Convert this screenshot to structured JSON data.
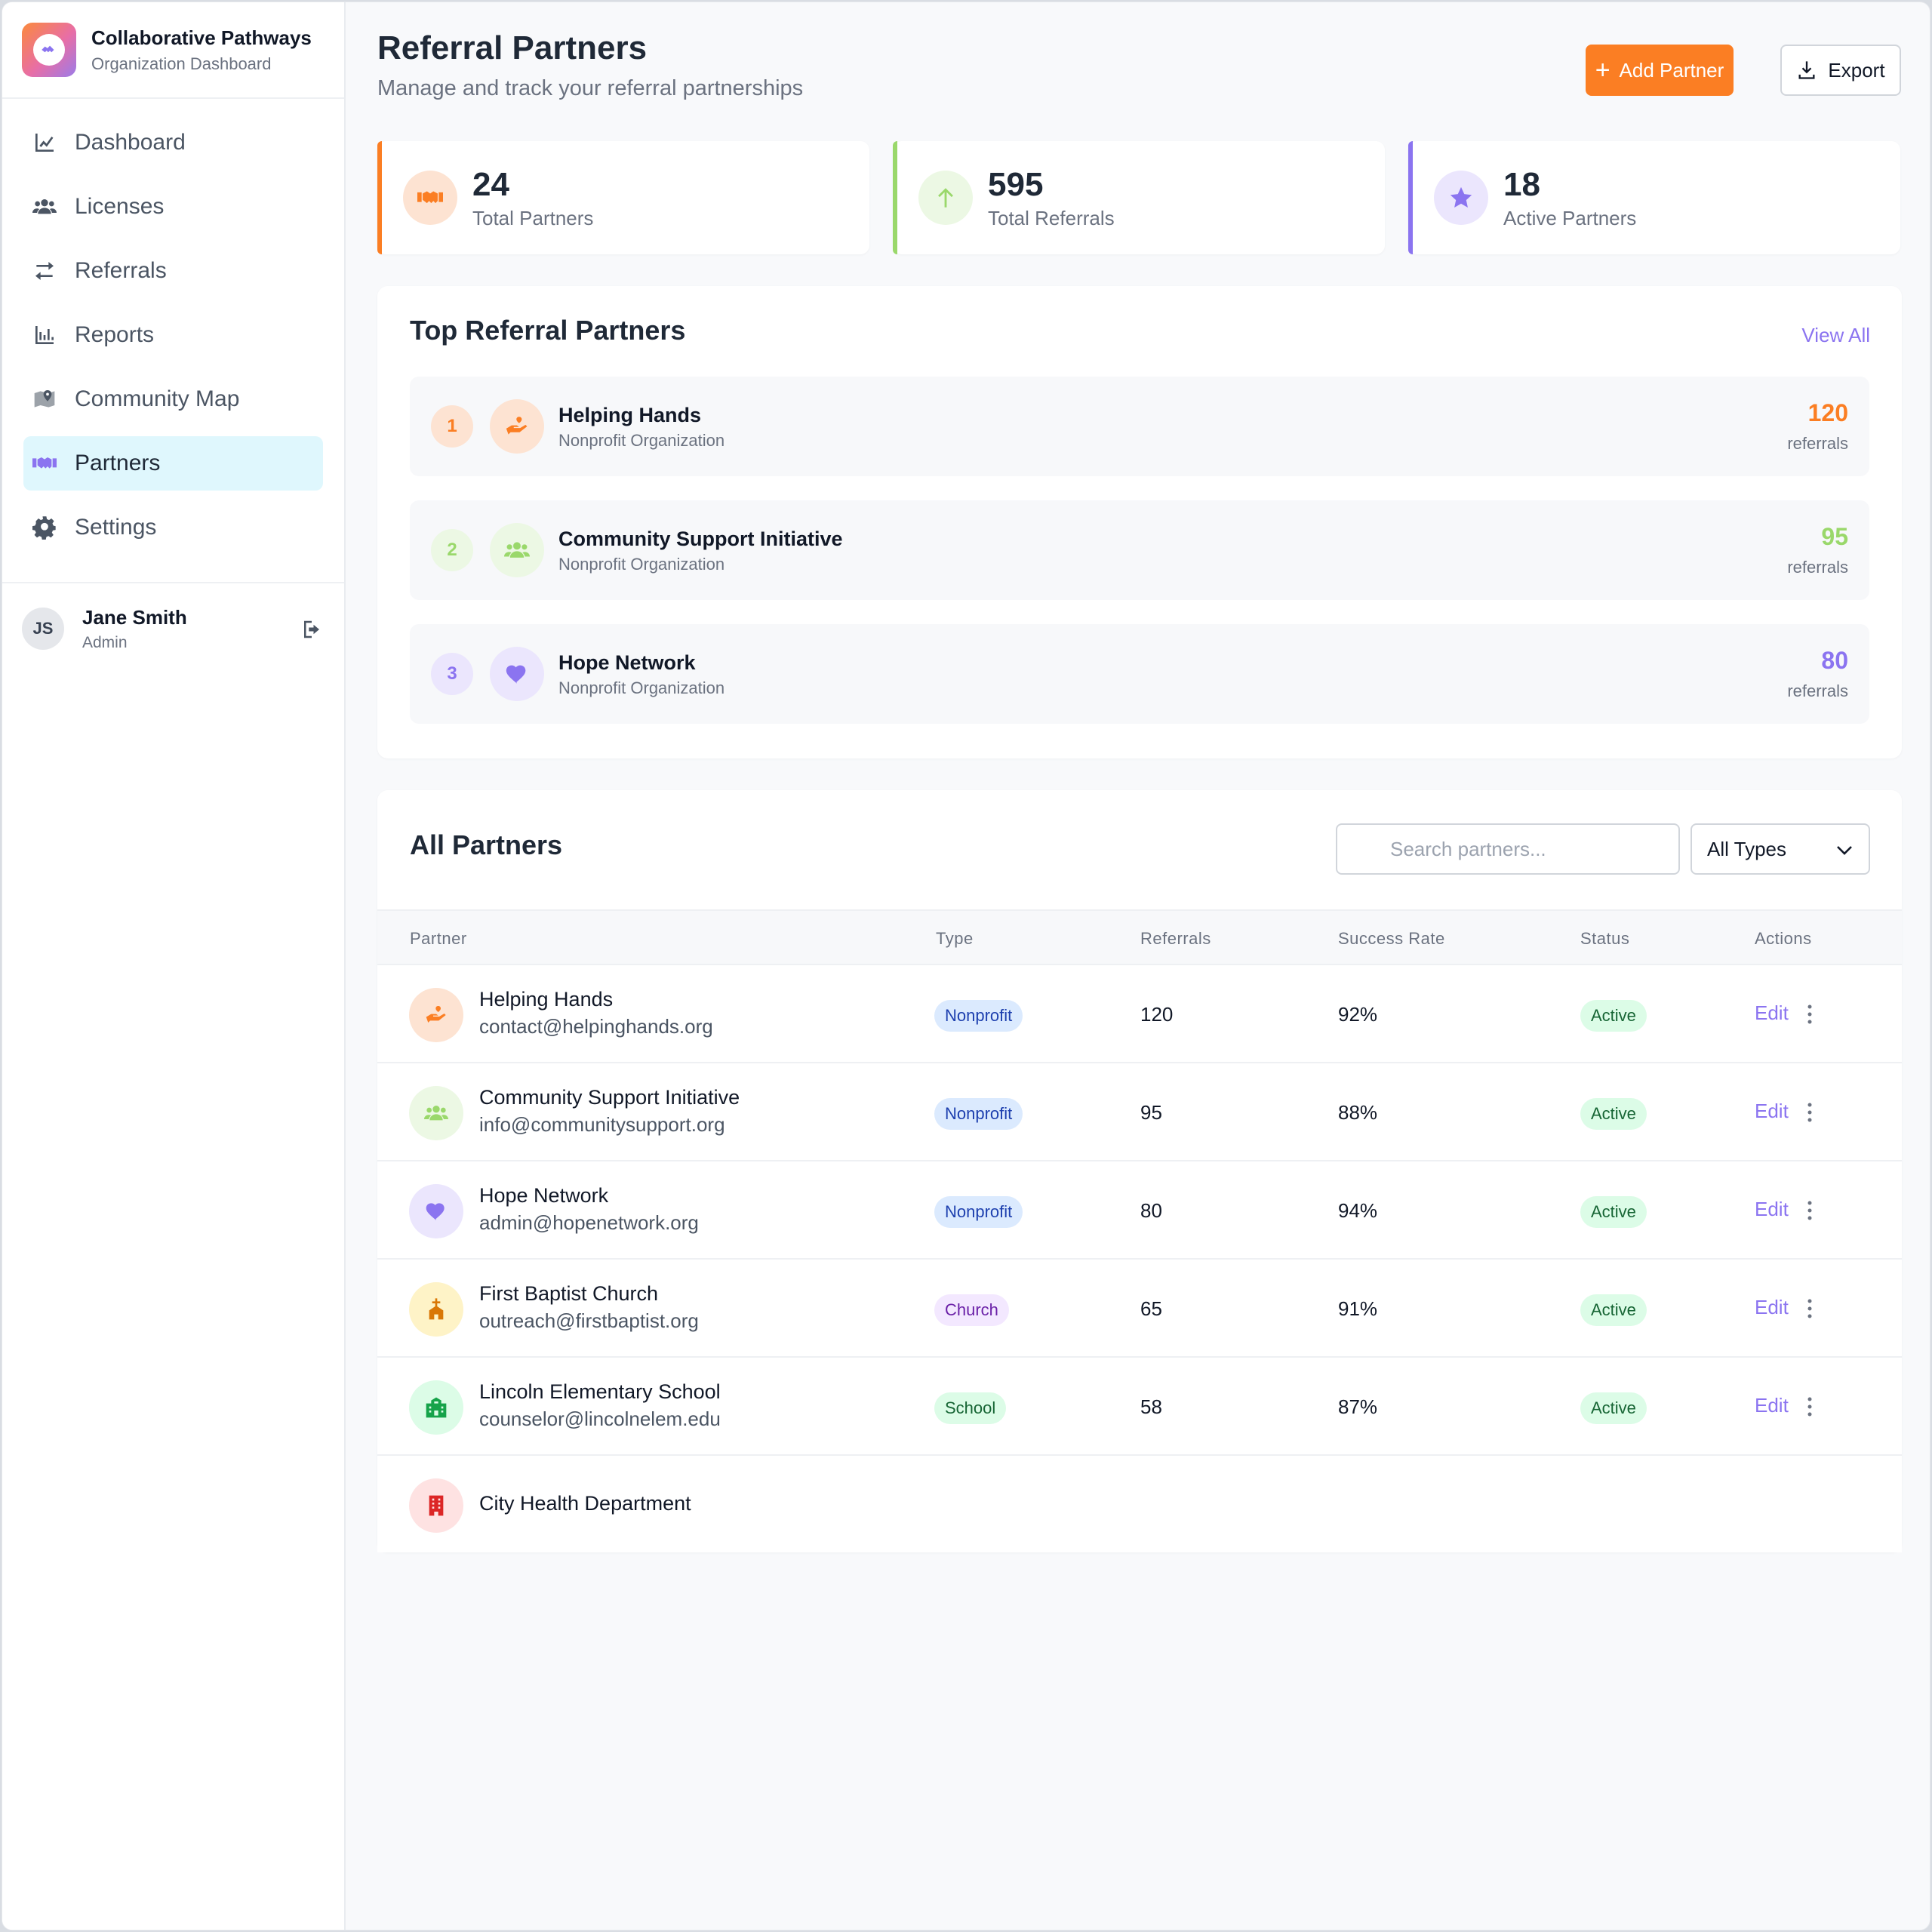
{
  "brand": {
    "title": "Collaborative Pathways",
    "subtitle": "Organization Dashboard"
  },
  "nav": [
    {
      "label": "Dashboard",
      "icon": "chart-line-icon",
      "active": false
    },
    {
      "label": "Licenses",
      "icon": "users-icon",
      "active": false
    },
    {
      "label": "Referrals",
      "icon": "exchange-arrows-icon",
      "active": false
    },
    {
      "label": "Reports",
      "icon": "bar-chart-icon",
      "active": false
    },
    {
      "label": "Community Map",
      "icon": "map-marker-icon",
      "active": false
    },
    {
      "label": "Partners",
      "icon": "handshake-icon",
      "active": true
    },
    {
      "label": "Settings",
      "icon": "gear-icon",
      "active": false
    }
  ],
  "user": {
    "initials": "JS",
    "name": "Jane Smith",
    "role": "Admin"
  },
  "header": {
    "title": "Referral Partners",
    "subtitle": "Manage and track your referral partnerships",
    "add_label": "Add Partner",
    "export_label": "Export"
  },
  "stats": [
    {
      "value": "24",
      "label": "Total Partners",
      "icon": "handshake-icon",
      "color": "#fb7e23"
    },
    {
      "value": "595",
      "label": "Total Referrals",
      "icon": "arrow-up-icon",
      "color": "#9ad86b"
    },
    {
      "value": "18",
      "label": "Active Partners",
      "icon": "star-icon",
      "color": "#8b74f0"
    }
  ],
  "top_partners": {
    "title": "Top Referral Partners",
    "view_all": "View All",
    "unit": "referrals",
    "items": [
      {
        "rank": "1",
        "name": "Helping Hands",
        "type": "Nonprofit Organization",
        "count": "120",
        "color": "#fb7e23"
      },
      {
        "rank": "2",
        "name": "Community Support Initiative",
        "type": "Nonprofit Organization",
        "count": "95",
        "color": "#9ad86b"
      },
      {
        "rank": "3",
        "name": "Hope Network",
        "type": "Nonprofit Organization",
        "count": "80",
        "color": "#8b74f0"
      }
    ]
  },
  "all_partners": {
    "title": "All Partners",
    "search_placeholder": "Search partners...",
    "filter_value": "All Types",
    "columns": [
      "Partner",
      "Type",
      "Referrals",
      "Success Rate",
      "Status",
      "Actions"
    ],
    "edit_label": "Edit",
    "rows": [
      {
        "name": "Helping Hands",
        "email": "contact@helpinghands.org",
        "type": "Nonprofit",
        "referrals": "120",
        "success": "92%",
        "status": "Active"
      },
      {
        "name": "Community Support Initiative",
        "email": "info@communitysupport.org",
        "type": "Nonprofit",
        "referrals": "95",
        "success": "88%",
        "status": "Active"
      },
      {
        "name": "Hope Network",
        "email": "admin@hopenetwork.org",
        "type": "Nonprofit",
        "referrals": "80",
        "success": "94%",
        "status": "Active"
      },
      {
        "name": "First Baptist Church",
        "email": "outreach@firstbaptist.org",
        "type": "Church",
        "referrals": "65",
        "success": "91%",
        "status": "Active"
      },
      {
        "name": "Lincoln Elementary School",
        "email": "counselor@lincolnelem.edu",
        "type": "School",
        "referrals": "58",
        "success": "87%",
        "status": "Active"
      },
      {
        "name": "City Health Department"
      }
    ]
  }
}
